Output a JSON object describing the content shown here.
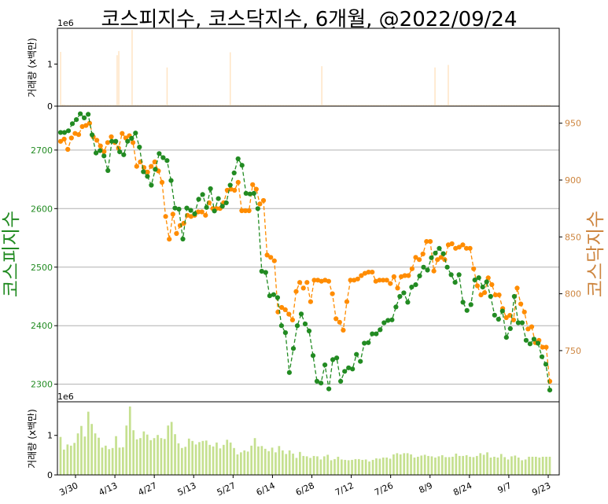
{
  "chart_data": {
    "type": "line",
    "title": "코스피지수, 코스닥지수, 6개월, @2022/09/24",
    "colors": {
      "kospi": "#228b22",
      "kosdaq": "#ff8c00",
      "kosdaq_label": "#cd853f",
      "kospi_volume": "#ffe4c4",
      "kosdaq_volume": "#c5e08f",
      "grid": "#b0b0b0"
    },
    "x_ticks": [
      "3/30",
      "4/13",
      "4/27",
      "5/13",
      "5/27",
      "6/14",
      "6/28",
      "7/12",
      "7/26",
      "8/9",
      "8/24",
      "9/7",
      "9/23"
    ],
    "top_panel": {
      "ylabel": "거래량 (x백만)",
      "offset_label": "1e6",
      "ylim": [
        0,
        1.85
      ],
      "y_ticks": [
        "0",
        "1"
      ],
      "volume_series": "kospi",
      "values": [
        1.29,
        0.04,
        0.04,
        0.03,
        0.03,
        0.03,
        0.03,
        0.03,
        0.03,
        0.03,
        0.03,
        0.03,
        0.03,
        0.03,
        0.03,
        0.03,
        0.03,
        0.03,
        0.03,
        0.03,
        0.03,
        0.03,
        0.03,
        0.03,
        0.03,
        0.03,
        0.03,
        0.03,
        0.03,
        0.03,
        0.03,
        0.03,
        0.03,
        0.03,
        1.21,
        1.31,
        0.03,
        0.03,
        0.03,
        0.03,
        0.03,
        0.03,
        0.03,
        1.81,
        0.03,
        0.03,
        0.03,
        0.03,
        0.03,
        0.03,
        0.03,
        0.03,
        0.03,
        0.03,
        0.03,
        0.03,
        0.03,
        0.03,
        0.03,
        0.03,
        0.03,
        0.03,
        0.03,
        0.03,
        0.92,
        0.03,
        0.03,
        0.03,
        0.03,
        0.03,
        0.03,
        0.03,
        0.03,
        0.03,
        0.03,
        0.03,
        0.03,
        0.03,
        0.03,
        0.03,
        0.03,
        0.03,
        0.03,
        0.03,
        0.03,
        0.03,
        0.03,
        0.03,
        0.03,
        0.03,
        0.03,
        0.03,
        0.03,
        0.03,
        0.03,
        0.03,
        0.03,
        0.03,
        0.03,
        0.03,
        0.03,
        0.03,
        1.28,
        0.03,
        0.03,
        0.03,
        0.03,
        0.03,
        0.03,
        0.03,
        0.03,
        0.03,
        0.03,
        0.03,
        0.03,
        0.03,
        0.03,
        0.03,
        0.03,
        0.03,
        0.03,
        0.03,
        0.03,
        0.03,
        0.03,
        0.03,
        0.03,
        0.03,
        0.03,
        0.03,
        0.03,
        0.03,
        0.03,
        0.03,
        0.03,
        0.03,
        0.03,
        0.03,
        0.03,
        0.03,
        0.03,
        0.03,
        0.03,
        0.03,
        0.03,
        0.03,
        0.03,
        0.03,
        0.03,
        0.03,
        0.03,
        0.03,
        0.03,
        0.03,
        0.03,
        0.03,
        0.03,
        0.95,
        0.03,
        0.03,
        0.03,
        0.03,
        0.03,
        0.03,
        0.03,
        0.03,
        0.03,
        0.03,
        0.03,
        0.03,
        0.03,
        0.03,
        0.03,
        0.03,
        0.03,
        0.03,
        0.03,
        0.03,
        0.03,
        0.03,
        0.03,
        0.03,
        0.03,
        0.03,
        0.03,
        0.03,
        0.03,
        0.03,
        0.03,
        0.03,
        0.03,
        0.03,
        0.03,
        0.03,
        0.03,
        0.03,
        0.03,
        0.03,
        0.03,
        0.03,
        0.03,
        0.03,
        0.03,
        0.03,
        0.03,
        0.03,
        0.03,
        0.03,
        0.03,
        0.03,
        0.03,
        0.03,
        0.03,
        0.03,
        0.03,
        0.03,
        0.03,
        0.03,
        0.03,
        0.03,
        0.03,
        0.03,
        0.03,
        0.03,
        0.03,
        0.92,
        0.03,
        0.03,
        0.03,
        0.03,
        0.03,
        0.03,
        0.03,
        0.98,
        0.03,
        0.03,
        0.03,
        0.03,
        0.03,
        0.03,
        0.03,
        0.03,
        0.03,
        0.03,
        0.03,
        0.03,
        0.03,
        0.03,
        0.03,
        0.03,
        0.03,
        0.03,
        0.03,
        0.03,
        0.03,
        0.03,
        0.03,
        0.03,
        0.03,
        0.03,
        0.03,
        0.03,
        0.03,
        0.03,
        0.03,
        0.03,
        0.03,
        0.03,
        0.03,
        0.03,
        0.03,
        0.03,
        0.03,
        0.03,
        0.03,
        0.03,
        0.03,
        0.03,
        0.03,
        0.03,
        0.03,
        0.03,
        0.03,
        0.03,
        0.03,
        0.03,
        0.03,
        0.03,
        0.03,
        0.03,
        0.03,
        0.03,
        0.03,
        0.03,
        0.03
      ]
    },
    "main_panel": {
      "ylabel_left": "코스피지수",
      "ylabel_right": "코스닥지수",
      "ylim_left": [
        2270,
        2775
      ],
      "ylim_right": [
        705,
        965
      ],
      "y_ticks_left": [
        "2300",
        "2400",
        "2500",
        "2600",
        "2700"
      ],
      "y_ticks_right": [
        "750",
        "800",
        "850",
        "900",
        "950"
      ],
      "series": [
        {
          "key": "kospi",
          "axis": "left",
          "values": [
            2730,
            2730,
            2733,
            2745,
            2752,
            2762,
            2755,
            2761,
            2726,
            2695,
            2699,
            2690,
            2665,
            2715,
            2715,
            2697,
            2692,
            2715,
            2720,
            2729,
            2705,
            2663,
            2655,
            2640,
            2667,
            2694,
            2687,
            2682,
            2648,
            2601,
            2599,
            2548,
            2601,
            2597,
            2591,
            2616,
            2624,
            2602,
            2634,
            2596,
            2617,
            2604,
            2610,
            2640,
            2661,
            2685,
            2674,
            2626,
            2625,
            2626,
            2600,
            2493,
            2491,
            2451,
            2453,
            2448,
            2400,
            2388,
            2320,
            2361,
            2400,
            2420,
            2403,
            2391,
            2349,
            2305,
            2302,
            2333,
            2292,
            2342,
            2345,
            2305,
            2322,
            2328,
            2326,
            2351,
            2339,
            2370,
            2371,
            2386,
            2386,
            2393,
            2405,
            2409,
            2410,
            2432,
            2450,
            2456,
            2440,
            2466,
            2470,
            2485,
            2500,
            2495,
            2516,
            2524,
            2532,
            2523,
            2500,
            2487,
            2474,
            2487,
            2440,
            2426,
            2436,
            2478,
            2482,
            2466,
            2475,
            2450,
            2418,
            2411,
            2425,
            2380,
            2395,
            2450,
            2405,
            2405,
            2375,
            2369,
            2377,
            2370,
            2347,
            2334,
            2290
          ]
        },
        {
          "key": "kosdaq",
          "axis": "right",
          "values": [
            934,
            936,
            927,
            937,
            941,
            940,
            947,
            948,
            950,
            938,
            935,
            930,
            925,
            933,
            938,
            933,
            928,
            941,
            937,
            939,
            933,
            912,
            916,
            911,
            907,
            912,
            916,
            908,
            898,
            868,
            848,
            870,
            853,
            860,
            862,
            869,
            868,
            869,
            872,
            872,
            869,
            880,
            875,
            875,
            875,
            880,
            891,
            892,
            891,
            898,
            873,
            873,
            873,
            896,
            892,
            879,
            882,
            834,
            832,
            829,
            784,
            788,
            786,
            782,
            777,
            802,
            810,
            805,
            810,
            793,
            812,
            812,
            811,
            812,
            811,
            800,
            778,
            775,
            768,
            793,
            812,
            812,
            813,
            816,
            818,
            819,
            819,
            811,
            812,
            812,
            812,
            809,
            815,
            805,
            815,
            816,
            816,
            822,
            832,
            830,
            835,
            846,
            846,
            820,
            830,
            832,
            830,
            843,
            844,
            840,
            841,
            843,
            840,
            840,
            822,
            807,
            799,
            801,
            814,
            808,
            799,
            799,
            787,
            779,
            781,
            777,
            805,
            791,
            784,
            769,
            771,
            757,
            759,
            753,
            753,
            723
          ]
        }
      ]
    },
    "bottom_panel": {
      "ylabel": "거래량 (x백만)",
      "offset_label": "1e6",
      "ylim": [
        0,
        1.85
      ],
      "y_ticks": [
        "0",
        "1"
      ],
      "volume_series": "kosdaq",
      "values": [
        0.96,
        0.64,
        0.77,
        0.74,
        0.81,
        1.05,
        1.24,
        0.97,
        1.6,
        1.29,
        1.05,
        0.94,
        0.69,
        0.74,
        0.65,
        0.68,
        0.98,
        0.69,
        0.7,
        1.25,
        1.73,
        1.13,
        0.9,
        0.93,
        1.1,
        1.02,
        0.88,
        0.93,
        1.01,
        0.93,
        0.91,
        1.25,
        1.34,
        1.03,
        0.8,
        0.68,
        0.71,
        0.92,
        0.86,
        0.77,
        0.83,
        0.86,
        0.87,
        0.76,
        0.72,
        0.82,
        0.67,
        0.76,
        0.89,
        0.82,
        0.68,
        0.52,
        0.57,
        0.62,
        0.59,
        0.74,
        0.93,
        0.72,
        0.73,
        0.66,
        0.6,
        0.69,
        0.57,
        0.73,
        0.62,
        0.53,
        0.62,
        0.54,
        0.43,
        0.58,
        0.48,
        0.47,
        0.43,
        0.48,
        0.47,
        0.39,
        0.47,
        0.51,
        0.37,
        0.4,
        0.46,
        0.39,
        0.38,
        0.37,
        0.38,
        0.4,
        0.4,
        0.38,
        0.39,
        0.34,
        0.38,
        0.42,
        0.41,
        0.44,
        0.44,
        0.41,
        0.52,
        0.55,
        0.52,
        0.55,
        0.55,
        0.52,
        0.44,
        0.46,
        0.49,
        0.51,
        0.48,
        0.47,
        0.44,
        0.47,
        0.5,
        0.45,
        0.45,
        0.46,
        0.54,
        0.48,
        0.48,
        0.5,
        0.46,
        0.45,
        0.48,
        0.55,
        0.51,
        0.57,
        0.44,
        0.46,
        0.44,
        0.53,
        0.45,
        0.39,
        0.47,
        0.49,
        0.44,
        0.37,
        0.39,
        0.46,
        0.46,
        0.46,
        0.44,
        0.46,
        0.46,
        0.46
      ]
    }
  }
}
